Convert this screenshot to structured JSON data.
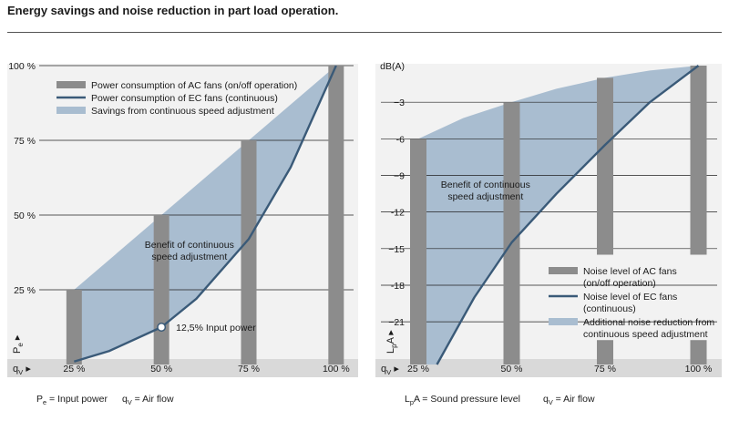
{
  "page_title": "Energy savings and noise reduction in part load operation.",
  "colors": {
    "panel_bg": "#f2f2f2",
    "axis_bar": "#d9d9d9",
    "grid": "#222222",
    "ac_bar": "#8c8c8c",
    "ec_line": "#3a5a78",
    "savings": "#a9bdd0"
  },
  "chart_data": [
    {
      "type": "bar",
      "chart_id": "power",
      "categories": [
        "25 %",
        "50 %",
        "75 %",
        "100 %"
      ],
      "x_values": [
        25,
        50,
        75,
        100
      ],
      "series": [
        {
          "name": "Power consumption of AC fans (on/off operation)",
          "type": "bar",
          "values": [
            25,
            50,
            75,
            100
          ]
        },
        {
          "name": "Power consumption of EC fans (continuous)",
          "type": "line",
          "points": [
            [
              25,
              1
            ],
            [
              35,
              4.5
            ],
            [
              50,
              12.5
            ],
            [
              60,
              22
            ],
            [
              75,
              42
            ],
            [
              87,
              66
            ],
            [
              100,
              100
            ]
          ]
        },
        {
          "name": "Savings from continuous speed adjustment",
          "type": "area",
          "upper": [
            [
              25,
              25
            ],
            [
              100,
              100
            ]
          ]
        }
      ],
      "legend": [
        {
          "label": "Power consumption of AC fans (on/off operation)",
          "kind": "bar"
        },
        {
          "label": "Power consumption of EC fans (continuous)",
          "kind": "line"
        },
        {
          "label": "Savings from continuous speed adjustment",
          "kind": "area"
        }
      ],
      "legend_position": "top-left",
      "y_ticks": [
        {
          "value": 25,
          "label": "25 %"
        },
        {
          "value": 50,
          "label": "50 %"
        },
        {
          "value": 75,
          "label": "75 %"
        },
        {
          "value": 100,
          "label": "100 %"
        }
      ],
      "ylim": [
        0,
        100
      ],
      "xlim": [
        15,
        105
      ],
      "y_axis_symbol": "P",
      "y_axis_sub": "e",
      "x_axis_symbol": "q",
      "x_axis_sub": "V",
      "caption": [
        {
          "sym": "P",
          "sub": "e",
          "text": " = Input power"
        },
        {
          "sym": "q",
          "sub": "V",
          "text": " = Air flow"
        }
      ],
      "annotations": [
        {
          "lines": [
            "Benefit of continuous",
            "speed adjustment"
          ],
          "x": 58,
          "y": 39
        },
        {
          "text": "12,5% Input power",
          "x": 50,
          "y": 12.5,
          "marker": true
        }
      ],
      "grid": true
    },
    {
      "type": "bar",
      "chart_id": "noise",
      "categories": [
        "25 %",
        "50 %",
        "75 %",
        "100 %"
      ],
      "x_values": [
        25,
        50,
        75,
        100
      ],
      "series": [
        {
          "name": "Noise level of AC fans (on/off operation)",
          "type": "bar",
          "values": [
            -6,
            -3,
            -1,
            0
          ]
        },
        {
          "name": "Noise level of EC fans (continuous)",
          "type": "line",
          "points": [
            [
              30,
              -24.5
            ],
            [
              40,
              -19
            ],
            [
              50,
              -14.5
            ],
            [
              62,
              -10.5
            ],
            [
              75,
              -6.5
            ],
            [
              87,
              -3
            ],
            [
              100,
              0
            ]
          ]
        },
        {
          "name": "Additional noise reduction from continuous speed adjustment",
          "type": "area",
          "upper": [
            [
              25,
              -6
            ],
            [
              37,
              -4.3
            ],
            [
              50,
              -3
            ],
            [
              62,
              -1.9
            ],
            [
              75,
              -1
            ],
            [
              87,
              -0.4
            ],
            [
              100,
              0
            ]
          ]
        }
      ],
      "legend": [
        {
          "lines": [
            "Noise level of AC fans",
            "(on/off operation)"
          ],
          "kind": "bar"
        },
        {
          "lines": [
            "Noise level of EC fans",
            "(continuous)"
          ],
          "kind": "line"
        },
        {
          "lines": [
            "Additional noise reduction from",
            "continuous speed adjustment"
          ],
          "kind": "area"
        }
      ],
      "legend_position": "bottom-right",
      "y_ticks": [
        {
          "value": 0,
          "label": "dB(A)"
        },
        {
          "value": -3,
          "label": "−3"
        },
        {
          "value": -6,
          "label": "-6"
        },
        {
          "value": -9,
          "label": "−9"
        },
        {
          "value": -12,
          "label": "-12"
        },
        {
          "value": -15,
          "label": "−15"
        },
        {
          "value": -18,
          "label": "-18"
        },
        {
          "value": -21,
          "label": "−21"
        }
      ],
      "ylim": [
        -24.5,
        0
      ],
      "xlim": [
        15,
        105
      ],
      "y_axis_symbol": "L",
      "y_axis_sub": "p",
      "y_axis_suffix": "A",
      "x_axis_symbol": "q",
      "x_axis_sub": "V",
      "caption": [
        {
          "sym": "L",
          "sub": "p",
          "text": "A = Sound pressure level"
        },
        {
          "sym": "q",
          "sub": "V",
          "text": " = Air flow"
        }
      ],
      "annotations": [
        {
          "lines": [
            "Benefit of continuous",
            "speed adjustment"
          ],
          "x": 43,
          "y": -10
        }
      ],
      "grid": true
    }
  ]
}
